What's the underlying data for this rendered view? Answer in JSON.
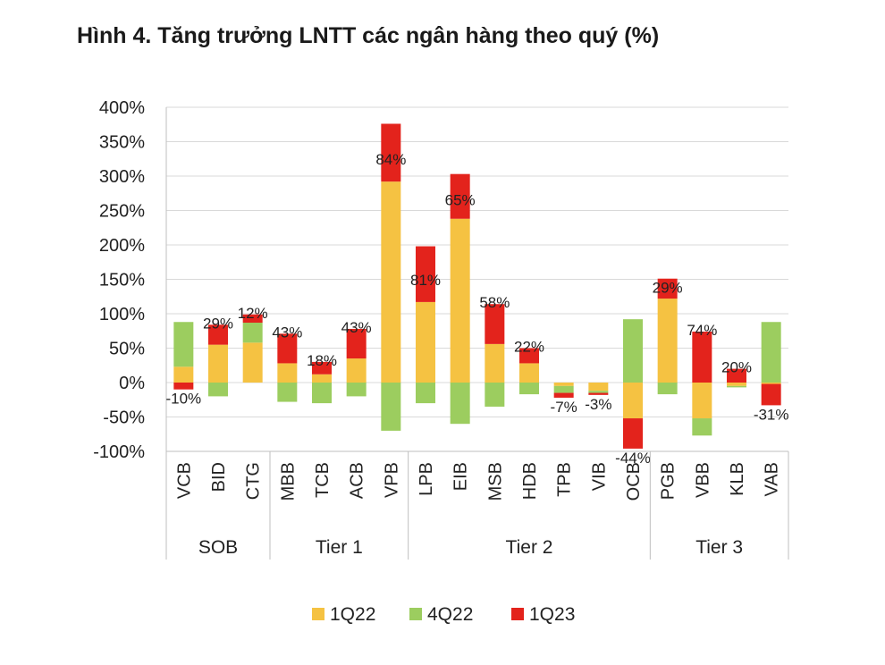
{
  "chart_data": {
    "type": "bar",
    "stacked": true,
    "title": "Hình 4. Tăng trưởng LNTT các ngân hàng theo quý (%)",
    "xlabel": "",
    "ylabel": "",
    "ylim": [
      -100,
      400
    ],
    "yticks": [
      400,
      350,
      300,
      250,
      200,
      150,
      100,
      50,
      0,
      -50,
      -100
    ],
    "ytick_labels": [
      "400%",
      "350%",
      "300%",
      "250%",
      "200%",
      "150%",
      "100%",
      "50%",
      "0%",
      "-50%",
      "-100%"
    ],
    "grid": true,
    "legend_position": "bottom",
    "categories": [
      "VCB",
      "BID",
      "CTG",
      "MBB",
      "TCB",
      "ACB",
      "VPB",
      "LPB",
      "EIB",
      "MSB",
      "HDB",
      "TPB",
      "VIB",
      "OCB",
      "PGB",
      "VBB",
      "KLB",
      "VAB"
    ],
    "groups": [
      {
        "name": "SOB",
        "count": 3
      },
      {
        "name": "Tier 1",
        "count": 4
      },
      {
        "name": "Tier 2",
        "count": 7
      },
      {
        "name": "Tier 3",
        "count": 4
      }
    ],
    "series": [
      {
        "name": "1Q22",
        "color": "#F5C242",
        "values": [
          23,
          55,
          58,
          28,
          12,
          35,
          292,
          117,
          238,
          56,
          28,
          -5,
          -12,
          -52,
          122,
          -52,
          -5,
          -2
        ]
      },
      {
        "name": "4Q22",
        "color": "#9CCD5F",
        "values": [
          65,
          -20,
          29,
          -28,
          -30,
          -20,
          -70,
          -30,
          -60,
          -35,
          -17,
          -10,
          -3,
          92,
          -17,
          -25,
          -2,
          88
        ]
      },
      {
        "name": "1Q23",
        "color": "#E3231C",
        "values": [
          -10,
          29,
          12,
          43,
          18,
          43,
          84,
          81,
          65,
          58,
          22,
          -7,
          -3,
          -44,
          29,
          74,
          20,
          -31
        ]
      }
    ],
    "data_labels": [
      "-10%",
      "29%",
      "12%",
      "43%",
      "18%",
      "43%",
      "84%",
      "81%",
      "65%",
      "58%",
      "22%",
      "-7%",
      "-3%",
      "-44%",
      "29%",
      "74%",
      "20%",
      "-31%"
    ]
  }
}
